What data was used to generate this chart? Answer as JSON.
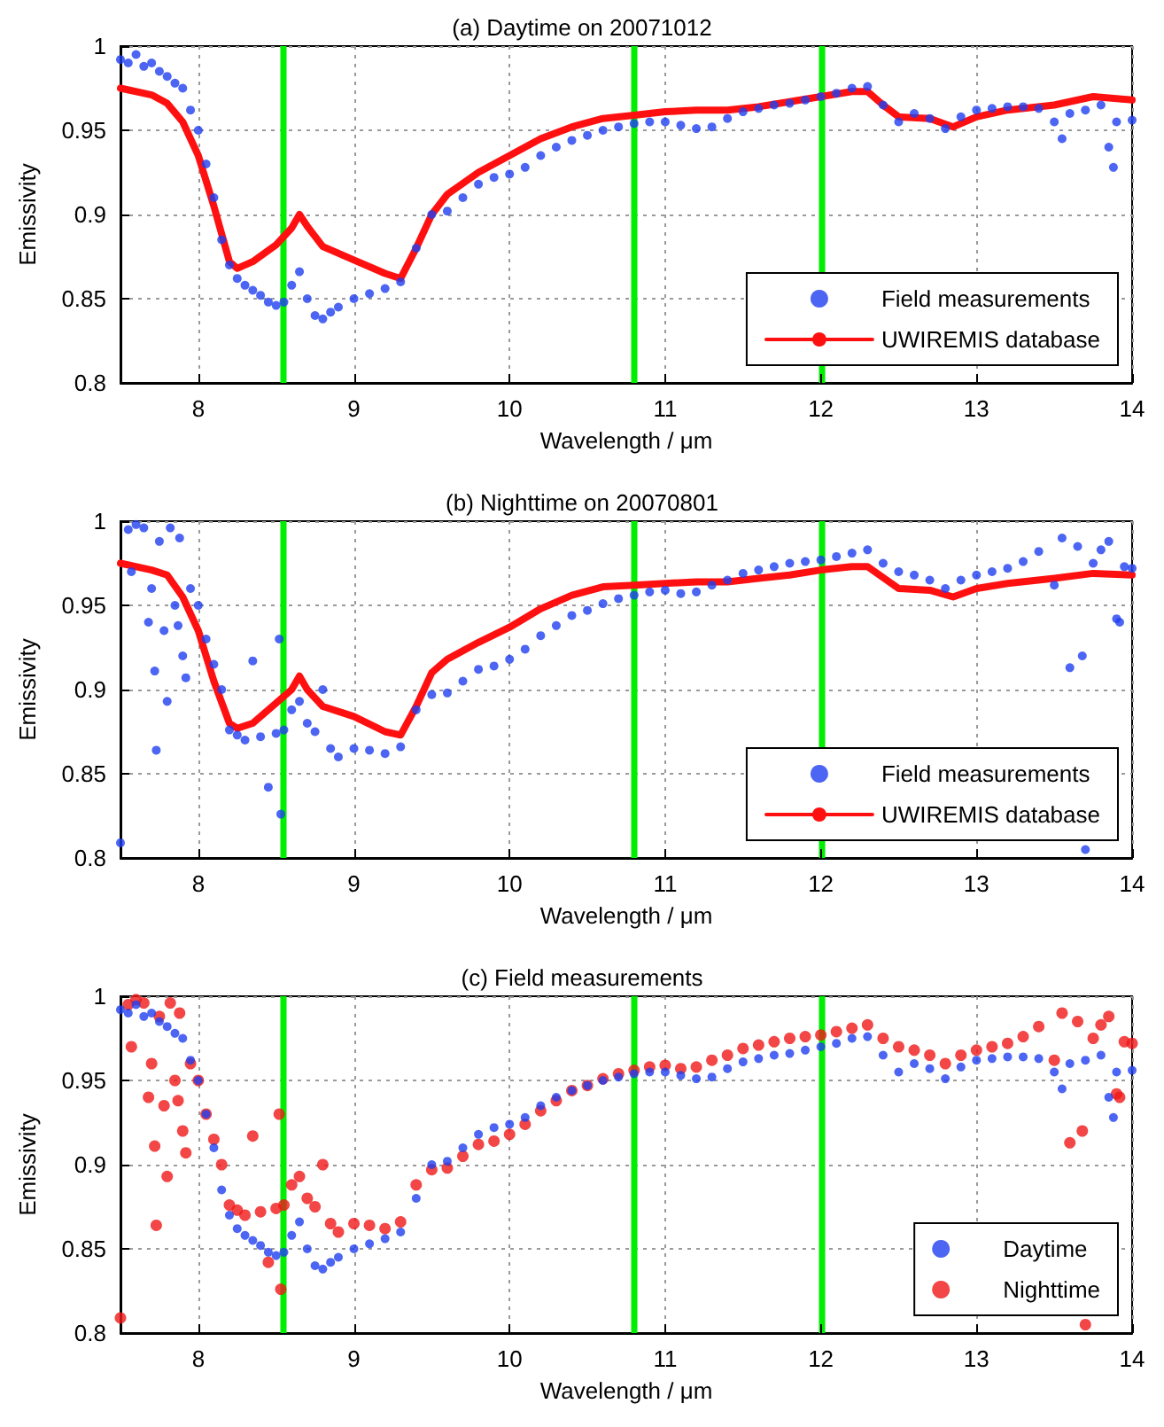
{
  "chart_data": [
    {
      "type": "scatter",
      "title": "(a) Daytime on 20071012",
      "xlabel": "Wavelength / μm",
      "ylabel": "Emissivity",
      "xlim": [
        7.5,
        14
      ],
      "ylim": [
        0.8,
        1
      ],
      "xticks": [
        8,
        9,
        10,
        11,
        12,
        13,
        14
      ],
      "yticks": [
        0.8,
        0.85,
        0.9,
        0.95,
        1
      ],
      "grid": true,
      "legend": "bottom right",
      "ref_lines": [
        {
          "axis": "x",
          "value": 8.55,
          "color": "#00ee00"
        },
        {
          "axis": "x",
          "value": 10.8,
          "color": "#00ee00"
        },
        {
          "axis": "x",
          "value": 12,
          "color": "#00ee00"
        }
      ],
      "series": [
        {
          "name": "Field measurements",
          "type": "scatter",
          "marker": "circle",
          "color": "#1f3ff0",
          "x": [
            7.5,
            7.55,
            7.6,
            7.65,
            7.7,
            7.75,
            7.8,
            7.85,
            7.9,
            7.95,
            8.0,
            8.05,
            8.1,
            8.15,
            8.2,
            8.25,
            8.3,
            8.35,
            8.4,
            8.45,
            8.5,
            8.55,
            8.6,
            8.65,
            8.7,
            8.75,
            8.8,
            8.85,
            8.9,
            9.0,
            9.1,
            9.2,
            9.3,
            9.4,
            9.5,
            9.6,
            9.7,
            9.8,
            9.9,
            10.0,
            10.1,
            10.2,
            10.3,
            10.4,
            10.5,
            10.6,
            10.7,
            10.8,
            10.9,
            11.0,
            11.1,
            11.2,
            11.3,
            11.4,
            11.5,
            11.6,
            11.7,
            11.8,
            11.9,
            12.0,
            12.1,
            12.2,
            12.3,
            12.4,
            12.5,
            12.6,
            12.7,
            12.8,
            12.9,
            13.0,
            13.1,
            13.2,
            13.3,
            13.4,
            13.5,
            13.55,
            13.6,
            13.7,
            13.8,
            13.85,
            13.88,
            13.9,
            14.0
          ],
          "values": [
            0.992,
            0.99,
            0.995,
            0.988,
            0.99,
            0.985,
            0.982,
            0.978,
            0.975,
            0.962,
            0.95,
            0.93,
            0.91,
            0.885,
            0.87,
            0.862,
            0.858,
            0.855,
            0.852,
            0.848,
            0.846,
            0.848,
            0.858,
            0.866,
            0.85,
            0.84,
            0.838,
            0.842,
            0.845,
            0.85,
            0.853,
            0.856,
            0.86,
            0.88,
            0.9,
            0.902,
            0.91,
            0.918,
            0.922,
            0.924,
            0.928,
            0.935,
            0.94,
            0.944,
            0.947,
            0.95,
            0.952,
            0.954,
            0.955,
            0.955,
            0.953,
            0.951,
            0.952,
            0.957,
            0.961,
            0.963,
            0.965,
            0.966,
            0.968,
            0.97,
            0.972,
            0.975,
            0.976,
            0.965,
            0.955,
            0.96,
            0.957,
            0.951,
            0.958,
            0.962,
            0.963,
            0.964,
            0.964,
            0.963,
            0.955,
            0.945,
            0.96,
            0.962,
            0.965,
            0.94,
            0.928,
            0.955,
            0.956
          ]
        },
        {
          "name": "UWIREMIS database",
          "type": "line",
          "marker": "none",
          "line_style": "solid",
          "color": "#ff1010",
          "x": [
            7.5,
            7.7,
            7.8,
            7.9,
            8.0,
            8.1,
            8.2,
            8.25,
            8.35,
            8.5,
            8.6,
            8.65,
            8.7,
            8.8,
            9.0,
            9.2,
            9.3,
            9.4,
            9.5,
            9.6,
            9.8,
            10.0,
            10.2,
            10.4,
            10.6,
            10.8,
            11.0,
            11.2,
            11.4,
            11.6,
            11.8,
            12.0,
            12.2,
            12.3,
            12.4,
            12.5,
            12.7,
            12.85,
            13.0,
            13.2,
            13.5,
            13.75,
            14.0
          ],
          "values": [
            0.975,
            0.971,
            0.966,
            0.955,
            0.935,
            0.905,
            0.872,
            0.868,
            0.872,
            0.882,
            0.892,
            0.9,
            0.893,
            0.881,
            0.873,
            0.865,
            0.862,
            0.88,
            0.9,
            0.912,
            0.925,
            0.935,
            0.945,
            0.952,
            0.957,
            0.959,
            0.961,
            0.962,
            0.962,
            0.964,
            0.967,
            0.97,
            0.973,
            0.973,
            0.965,
            0.958,
            0.957,
            0.952,
            0.958,
            0.962,
            0.965,
            0.97,
            0.968
          ]
        }
      ]
    },
    {
      "type": "scatter",
      "title": "(b) Nighttime on 20070801",
      "xlabel": "Wavelength / μm",
      "ylabel": "Emissivity",
      "xlim": [
        7.5,
        14
      ],
      "ylim": [
        0.8,
        1
      ],
      "xticks": [
        8,
        9,
        10,
        11,
        12,
        13,
        14
      ],
      "yticks": [
        0.8,
        0.85,
        0.9,
        0.95,
        1
      ],
      "grid": true,
      "legend": "bottom right",
      "ref_lines": [
        {
          "axis": "x",
          "value": 8.55,
          "color": "#00ee00"
        },
        {
          "axis": "x",
          "value": 10.8,
          "color": "#00ee00"
        },
        {
          "axis": "x",
          "value": 12,
          "color": "#00ee00"
        }
      ],
      "series": [
        {
          "name": "Field measurements",
          "type": "scatter",
          "marker": "circle",
          "color": "#1f3ff0",
          "x": [
            7.5,
            7.55,
            7.57,
            7.6,
            7.65,
            7.68,
            7.7,
            7.72,
            7.73,
            7.75,
            7.78,
            7.8,
            7.82,
            7.85,
            7.87,
            7.88,
            7.9,
            7.92,
            7.95,
            8.0,
            8.05,
            8.1,
            8.15,
            8.2,
            8.25,
            8.3,
            8.35,
            8.4,
            8.45,
            8.5,
            8.52,
            8.53,
            8.55,
            8.6,
            8.65,
            8.7,
            8.75,
            8.8,
            8.85,
            8.9,
            9.0,
            9.1,
            9.2,
            9.3,
            9.4,
            9.5,
            9.6,
            9.7,
            9.8,
            9.9,
            10.0,
            10.1,
            10.2,
            10.3,
            10.4,
            10.5,
            10.6,
            10.7,
            10.8,
            10.9,
            11.0,
            11.1,
            11.2,
            11.3,
            11.4,
            11.5,
            11.6,
            11.7,
            11.8,
            11.9,
            12.0,
            12.1,
            12.2,
            12.3,
            12.4,
            12.5,
            12.6,
            12.7,
            12.8,
            12.9,
            13.0,
            13.1,
            13.2,
            13.3,
            13.4,
            13.5,
            13.55,
            13.6,
            13.65,
            13.68,
            13.7,
            13.75,
            13.8,
            13.85,
            13.9,
            13.92,
            13.95,
            14.0
          ],
          "values": [
            0.809,
            0.995,
            0.97,
            0.998,
            0.996,
            0.94,
            0.96,
            0.911,
            0.864,
            0.988,
            0.935,
            0.893,
            0.996,
            0.95,
            0.938,
            0.99,
            0.92,
            0.907,
            0.96,
            0.95,
            0.93,
            0.915,
            0.9,
            0.876,
            0.873,
            0.87,
            0.917,
            0.872,
            0.842,
            0.874,
            0.93,
            0.826,
            0.876,
            0.888,
            0.893,
            0.88,
            0.875,
            0.9,
            0.865,
            0.86,
            0.865,
            0.864,
            0.862,
            0.866,
            0.888,
            0.897,
            0.898,
            0.905,
            0.912,
            0.914,
            0.918,
            0.924,
            0.932,
            0.938,
            0.944,
            0.947,
            0.951,
            0.954,
            0.956,
            0.958,
            0.959,
            0.957,
            0.958,
            0.962,
            0.965,
            0.969,
            0.971,
            0.973,
            0.975,
            0.976,
            0.977,
            0.979,
            0.981,
            0.983,
            0.975,
            0.97,
            0.968,
            0.965,
            0.96,
            0.965,
            0.968,
            0.97,
            0.972,
            0.976,
            0.982,
            0.962,
            0.99,
            0.913,
            0.985,
            0.92,
            0.805,
            0.975,
            0.983,
            0.988,
            0.942,
            0.94,
            0.973,
            0.972
          ]
        },
        {
          "name": "UWIREMIS database",
          "type": "line",
          "marker": "none",
          "line_style": "solid",
          "color": "#ff1010",
          "x": [
            7.5,
            7.7,
            7.8,
            7.9,
            8.0,
            8.1,
            8.2,
            8.25,
            8.35,
            8.5,
            8.6,
            8.65,
            8.7,
            8.8,
            9.0,
            9.2,
            9.3,
            9.4,
            9.5,
            9.6,
            9.8,
            10.0,
            10.2,
            10.4,
            10.6,
            10.8,
            11.0,
            11.2,
            11.4,
            11.6,
            11.8,
            12.0,
            12.2,
            12.3,
            12.5,
            12.7,
            12.85,
            13.0,
            13.2,
            13.5,
            13.75,
            14.0
          ],
          "values": [
            0.975,
            0.971,
            0.968,
            0.955,
            0.935,
            0.905,
            0.88,
            0.877,
            0.88,
            0.892,
            0.9,
            0.908,
            0.9,
            0.89,
            0.884,
            0.875,
            0.873,
            0.89,
            0.91,
            0.918,
            0.928,
            0.937,
            0.948,
            0.956,
            0.961,
            0.962,
            0.963,
            0.964,
            0.964,
            0.966,
            0.968,
            0.971,
            0.973,
            0.973,
            0.96,
            0.959,
            0.955,
            0.96,
            0.963,
            0.966,
            0.969,
            0.968
          ]
        }
      ]
    },
    {
      "type": "scatter",
      "title": "(c) Field measurements",
      "xlabel": "Wavelength / μm",
      "ylabel": "Emissivity",
      "xlim": [
        7.5,
        14
      ],
      "ylim": [
        0.8,
        1
      ],
      "xticks": [
        8,
        9,
        10,
        11,
        12,
        13,
        14
      ],
      "yticks": [
        0.8,
        0.85,
        0.9,
        0.95,
        1
      ],
      "grid": true,
      "legend": "bottom right",
      "ref_lines": [
        {
          "axis": "x",
          "value": 8.55,
          "color": "#00ee00"
        },
        {
          "axis": "x",
          "value": 10.8,
          "color": "#00ee00"
        },
        {
          "axis": "x",
          "value": 12,
          "color": "#00ee00"
        }
      ],
      "series": [
        {
          "name": "Daytime",
          "type": "scatter",
          "marker": "circle",
          "color": "#1f3ff0",
          "x": [
            7.5,
            7.55,
            7.6,
            7.65,
            7.7,
            7.75,
            7.8,
            7.85,
            7.9,
            7.95,
            8.0,
            8.05,
            8.1,
            8.15,
            8.2,
            8.25,
            8.3,
            8.35,
            8.4,
            8.45,
            8.5,
            8.55,
            8.6,
            8.65,
            8.7,
            8.75,
            8.8,
            8.85,
            8.9,
            9.0,
            9.1,
            9.2,
            9.3,
            9.4,
            9.5,
            9.6,
            9.7,
            9.8,
            9.9,
            10.0,
            10.1,
            10.2,
            10.3,
            10.4,
            10.5,
            10.6,
            10.7,
            10.8,
            10.9,
            11.0,
            11.1,
            11.2,
            11.3,
            11.4,
            11.5,
            11.6,
            11.7,
            11.8,
            11.9,
            12.0,
            12.1,
            12.2,
            12.3,
            12.4,
            12.5,
            12.6,
            12.7,
            12.8,
            12.9,
            13.0,
            13.1,
            13.2,
            13.3,
            13.4,
            13.5,
            13.55,
            13.6,
            13.7,
            13.8,
            13.85,
            13.88,
            13.9,
            14.0
          ],
          "values": [
            0.992,
            0.99,
            0.995,
            0.988,
            0.99,
            0.985,
            0.982,
            0.978,
            0.975,
            0.962,
            0.95,
            0.93,
            0.91,
            0.885,
            0.87,
            0.862,
            0.858,
            0.855,
            0.852,
            0.848,
            0.846,
            0.848,
            0.858,
            0.866,
            0.85,
            0.84,
            0.838,
            0.842,
            0.845,
            0.85,
            0.853,
            0.856,
            0.86,
            0.88,
            0.9,
            0.902,
            0.91,
            0.918,
            0.922,
            0.924,
            0.928,
            0.935,
            0.94,
            0.944,
            0.947,
            0.95,
            0.952,
            0.954,
            0.955,
            0.955,
            0.953,
            0.951,
            0.952,
            0.957,
            0.961,
            0.963,
            0.965,
            0.966,
            0.968,
            0.97,
            0.972,
            0.975,
            0.976,
            0.965,
            0.955,
            0.96,
            0.957,
            0.951,
            0.958,
            0.962,
            0.963,
            0.964,
            0.964,
            0.963,
            0.955,
            0.945,
            0.96,
            0.962,
            0.965,
            0.94,
            0.928,
            0.955,
            0.956
          ]
        },
        {
          "name": "Nighttime",
          "type": "scatter",
          "marker": "circle",
          "color": "#f01818",
          "x": [
            7.5,
            7.55,
            7.57,
            7.6,
            7.65,
            7.68,
            7.7,
            7.72,
            7.73,
            7.75,
            7.78,
            7.8,
            7.82,
            7.85,
            7.87,
            7.88,
            7.9,
            7.92,
            7.95,
            8.0,
            8.05,
            8.1,
            8.15,
            8.2,
            8.25,
            8.3,
            8.35,
            8.4,
            8.45,
            8.5,
            8.52,
            8.53,
            8.55,
            8.6,
            8.65,
            8.7,
            8.75,
            8.8,
            8.85,
            8.9,
            9.0,
            9.1,
            9.2,
            9.3,
            9.4,
            9.5,
            9.6,
            9.7,
            9.8,
            9.9,
            10.0,
            10.1,
            10.2,
            10.3,
            10.4,
            10.5,
            10.6,
            10.7,
            10.8,
            10.9,
            11.0,
            11.1,
            11.2,
            11.3,
            11.4,
            11.5,
            11.6,
            11.7,
            11.8,
            11.9,
            12.0,
            12.1,
            12.2,
            12.3,
            12.4,
            12.5,
            12.6,
            12.7,
            12.8,
            12.9,
            13.0,
            13.1,
            13.2,
            13.3,
            13.4,
            13.5,
            13.55,
            13.6,
            13.65,
            13.68,
            13.7,
            13.75,
            13.8,
            13.85,
            13.9,
            13.92,
            13.95,
            14.0
          ],
          "values": [
            0.809,
            0.995,
            0.97,
            0.998,
            0.996,
            0.94,
            0.96,
            0.911,
            0.864,
            0.988,
            0.935,
            0.893,
            0.996,
            0.95,
            0.938,
            0.99,
            0.92,
            0.907,
            0.96,
            0.95,
            0.93,
            0.915,
            0.9,
            0.876,
            0.873,
            0.87,
            0.917,
            0.872,
            0.842,
            0.874,
            0.93,
            0.826,
            0.876,
            0.888,
            0.893,
            0.88,
            0.875,
            0.9,
            0.865,
            0.86,
            0.865,
            0.864,
            0.862,
            0.866,
            0.888,
            0.897,
            0.898,
            0.905,
            0.912,
            0.914,
            0.918,
            0.924,
            0.932,
            0.938,
            0.944,
            0.947,
            0.951,
            0.954,
            0.956,
            0.958,
            0.959,
            0.957,
            0.958,
            0.962,
            0.965,
            0.969,
            0.971,
            0.973,
            0.975,
            0.976,
            0.977,
            0.979,
            0.981,
            0.983,
            0.975,
            0.97,
            0.968,
            0.965,
            0.96,
            0.965,
            0.968,
            0.97,
            0.972,
            0.976,
            0.982,
            0.962,
            0.99,
            0.913,
            0.985,
            0.92,
            0.805,
            0.975,
            0.983,
            0.988,
            0.942,
            0.94,
            0.973,
            0.972
          ]
        }
      ]
    }
  ]
}
